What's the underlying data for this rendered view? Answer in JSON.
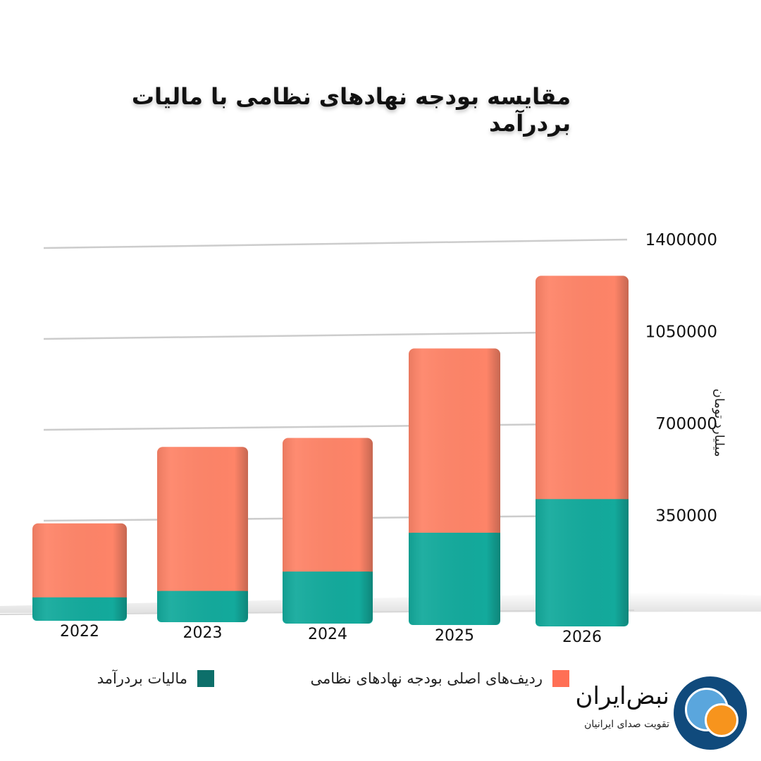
{
  "title": "مقایسه بودجه نهادهای نظامی با مالیات بردرآمد",
  "colors": {
    "military_budget": "#fe8468",
    "income_tax": "#13aa9c",
    "legend_income_tax": "#0d6f6a",
    "legend_military_budget": "#ff6f55",
    "grid": "#cccccc",
    "logo_dark": "#104a7c",
    "logo_light": "#5aa6dd",
    "logo_accent": "#f7941d"
  },
  "chart_data": {
    "type": "bar",
    "stacked": true,
    "categories": [
      "2022",
      "2023",
      "2024",
      "2025",
      "2026"
    ],
    "series": [
      {
        "name": "مالیات بردرآمد",
        "values": [
          90000,
          120000,
          200000,
          355000,
          490000
        ]
      },
      {
        "name": "ردیف‌های اصلی بودجه نهادهای نظامی",
        "values": [
          285000,
          555000,
          515000,
          710000,
          860000
        ]
      }
    ],
    "ylabel": "میلیارد تومان",
    "ylim": [
      0,
      1400000
    ],
    "yticks": [
      1400000,
      1050000,
      700000,
      350000
    ],
    "ytick_labels": [
      "1400000",
      "1050000",
      "700000",
      "350000"
    ],
    "grid": true,
    "y_axis_side": "right"
  },
  "legend": {
    "income_tax_label": "مالیات بردرآمد",
    "military_label": "ردیف‌های اصلی بودجه نهادهای نظامی"
  },
  "brand": {
    "name": "نبض‌ایران",
    "slogan": "تقویت صدای ایرانیان"
  }
}
